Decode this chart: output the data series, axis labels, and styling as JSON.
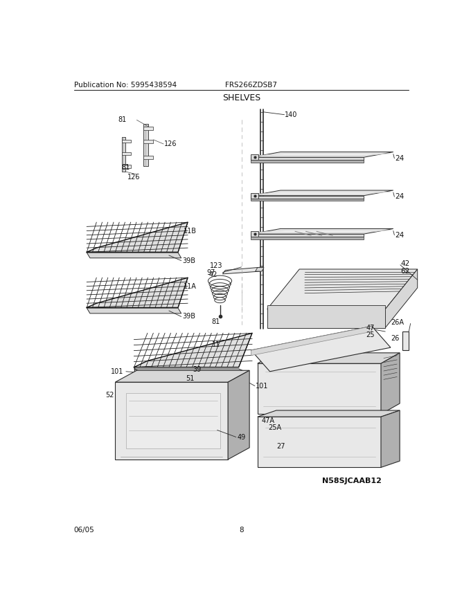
{
  "title": "SHELVES",
  "pub_no": "Publication No: 5995438594",
  "model": "FRS266ZDSB7",
  "diagram_id": "N58SJCAAB12",
  "date": "06/05",
  "page": "8",
  "bg_color": "#ffffff",
  "lc": "#2a2a2a",
  "gray1": "#c8c8c8",
  "gray2": "#d8d8d8",
  "gray3": "#e8e8e8",
  "gray4": "#b0b0b0"
}
